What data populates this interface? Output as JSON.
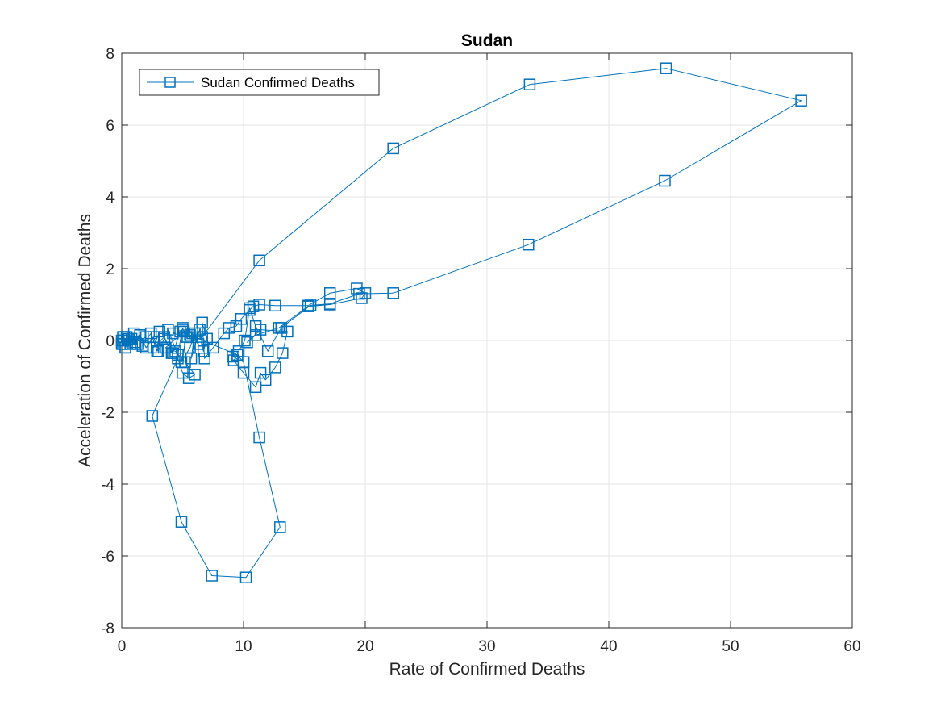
{
  "chart_data": {
    "type": "line",
    "title": "Sudan",
    "xlabel": "Rate of Confirmed Deaths",
    "ylabel": "Acceleration of Confirmed Deaths",
    "xlim": [
      0,
      60
    ],
    "ylim": [
      -8,
      8
    ],
    "xticks": [
      0,
      10,
      20,
      30,
      40,
      50,
      60
    ],
    "yticks": [
      -8,
      -6,
      -4,
      -2,
      0,
      2,
      4,
      6,
      8
    ],
    "grid": true,
    "legend": {
      "position": "top-left",
      "entries": [
        "Sudan Confirmed Deaths"
      ]
    },
    "series": [
      {
        "name": "Sudan Confirmed Deaths",
        "color": "#0072BD",
        "marker": "square",
        "x": [
          0,
          0.1,
          0.2,
          0.3,
          0.2,
          0.5,
          0.7,
          0.4,
          1.0,
          1.3,
          0.8,
          1.5,
          1.1,
          2.0,
          1.7,
          2.4,
          2.9,
          3.1,
          2.6,
          3.5,
          4.1,
          3.8,
          4.6,
          5.0,
          5.3,
          4.9,
          5.6,
          6.0,
          5.7,
          6.4,
          6.7,
          7.0,
          6.6,
          6.8,
          7.5,
          8.4,
          8.8,
          9.4,
          9.8,
          10.5,
          10.8,
          11.3,
          12.6,
          15.3,
          17.1,
          19.3,
          20.0,
          19.7,
          17.1,
          15.3,
          12.9,
          11.0,
          10.3,
          11.4,
          13.6,
          13.2,
          12.6,
          11.8,
          11.4,
          11.0,
          10.0,
          9.2,
          9.5,
          10.0,
          11.3,
          13.0,
          10.2,
          7.4,
          4.9,
          2.5,
          4.6,
          5.0,
          5.5,
          6.0,
          5.2,
          4.4,
          3.6,
          5.1,
          5.8,
          6.3,
          5.0,
          4.2,
          5.4,
          6.6,
          11.3,
          22.3,
          33.5,
          44.7,
          55.8,
          44.6,
          33.4,
          22.3,
          19.5,
          17.1,
          15.5,
          13.1,
          12.0,
          11.0,
          10.5,
          10.1,
          9.6,
          9.1,
          10.0,
          9.5,
          5.6,
          4.8,
          4.2,
          3.5,
          3.0,
          2.6,
          2.0,
          1.5,
          1.1,
          0.6,
          0.3,
          0.1,
          0
        ],
        "y": [
          0,
          -0.1,
          0.1,
          -0.2,
          0,
          0.05,
          -0.1,
          0.1,
          0.2,
          -0.1,
          0.05,
          0.15,
          -0.05,
          0.1,
          -0.15,
          0.2,
          -0.3,
          0.25,
          -0.2,
          0.1,
          -0.35,
          0.3,
          -0.4,
          0.35,
          0.1,
          -0.6,
          -0.2,
          0.2,
          -0.5,
          0.3,
          -0.3,
          0.05,
          0.5,
          -0.5,
          -0.2,
          0.2,
          0.35,
          0.4,
          0.6,
          0.85,
          0.95,
          1.0,
          0.97,
          0.97,
          1.32,
          1.45,
          1.32,
          1.18,
          1.0,
          0.95,
          0.35,
          0.15,
          -0.05,
          0.3,
          0.25,
          -0.35,
          -0.75,
          -1.1,
          -0.9,
          -1.3,
          -0.9,
          -0.55,
          -0.4,
          -0.6,
          -2.7,
          -5.2,
          -6.6,
          -6.55,
          -5.05,
          -2.1,
          -0.5,
          -0.9,
          -1.05,
          -0.95,
          -0.6,
          -0.3,
          -0.2,
          0.25,
          0.2,
          -0.1,
          0.3,
          0.2,
          0.1,
          0.1,
          2.23,
          5.35,
          7.13,
          7.58,
          6.68,
          4.45,
          2.67,
          1.32,
          1.3,
          1.02,
          0.98,
          0.35,
          -0.3,
          0.4,
          0.9,
          0.0,
          -0.3,
          -0.45,
          -0.6,
          -0.4,
          0.15,
          0.25,
          -0.35,
          0.05,
          -0.3,
          0.1,
          -0.2,
          0.15,
          -0.1,
          0.05,
          -0.2,
          0.1,
          -0.1
        ]
      }
    ]
  }
}
